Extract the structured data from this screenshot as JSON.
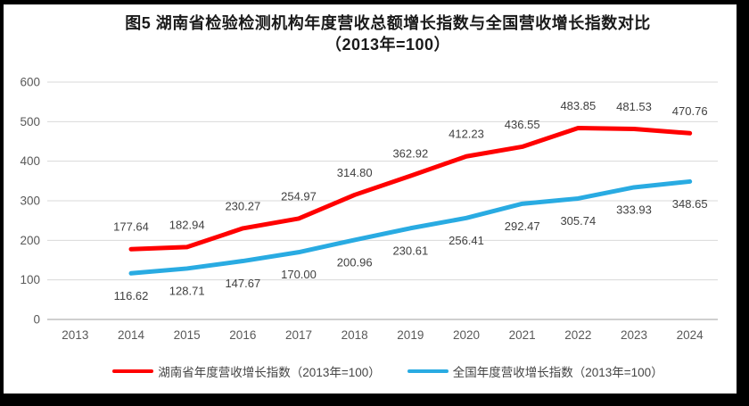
{
  "colors": {
    "frame_border": "#000000",
    "chart_background": "#ffffff",
    "gridline": "#d9d9d9",
    "axis_line": "#bfbfbf",
    "tick_label": "#595959",
    "data_label": "#404040",
    "legend_label": "#444444",
    "title": "#1a1a1a",
    "hunan_series": "#ff0000",
    "national_series": "#29abe2"
  },
  "chart_data": {
    "type": "line",
    "title": "图5 湖南省检验检测机构年度营收总额增长指数与全国营收增长指数对比",
    "subtitle": "（2013年=100）",
    "categories": [
      "2013",
      "2014",
      "2015",
      "2016",
      "2017",
      "2018",
      "2019",
      "2020",
      "2021",
      "2022",
      "2023",
      "2024"
    ],
    "series": [
      {
        "name": "湖南省年度营收增长指数（2013年=100）",
        "color": "#ff0000",
        "label_position": "above",
        "values": [
          null,
          177.64,
          182.94,
          230.27,
          254.97,
          314.8,
          362.92,
          412.23,
          436.55,
          483.85,
          481.53,
          470.76
        ]
      },
      {
        "name": "全国年度营收增长指数（2013年=100）",
        "color": "#29abe2",
        "label_position": "below",
        "values": [
          null,
          116.62,
          128.71,
          147.67,
          170.0,
          200.96,
          230.61,
          256.41,
          292.47,
          305.74,
          333.93,
          348.65
        ]
      }
    ],
    "ylim": [
      0,
      600
    ],
    "y_ticks": [
      0,
      100,
      200,
      300,
      400,
      500,
      600
    ],
    "grid": "horizontal-only",
    "legend_position": "bottom",
    "data_labels_shown": true,
    "label_decimals": 2
  }
}
